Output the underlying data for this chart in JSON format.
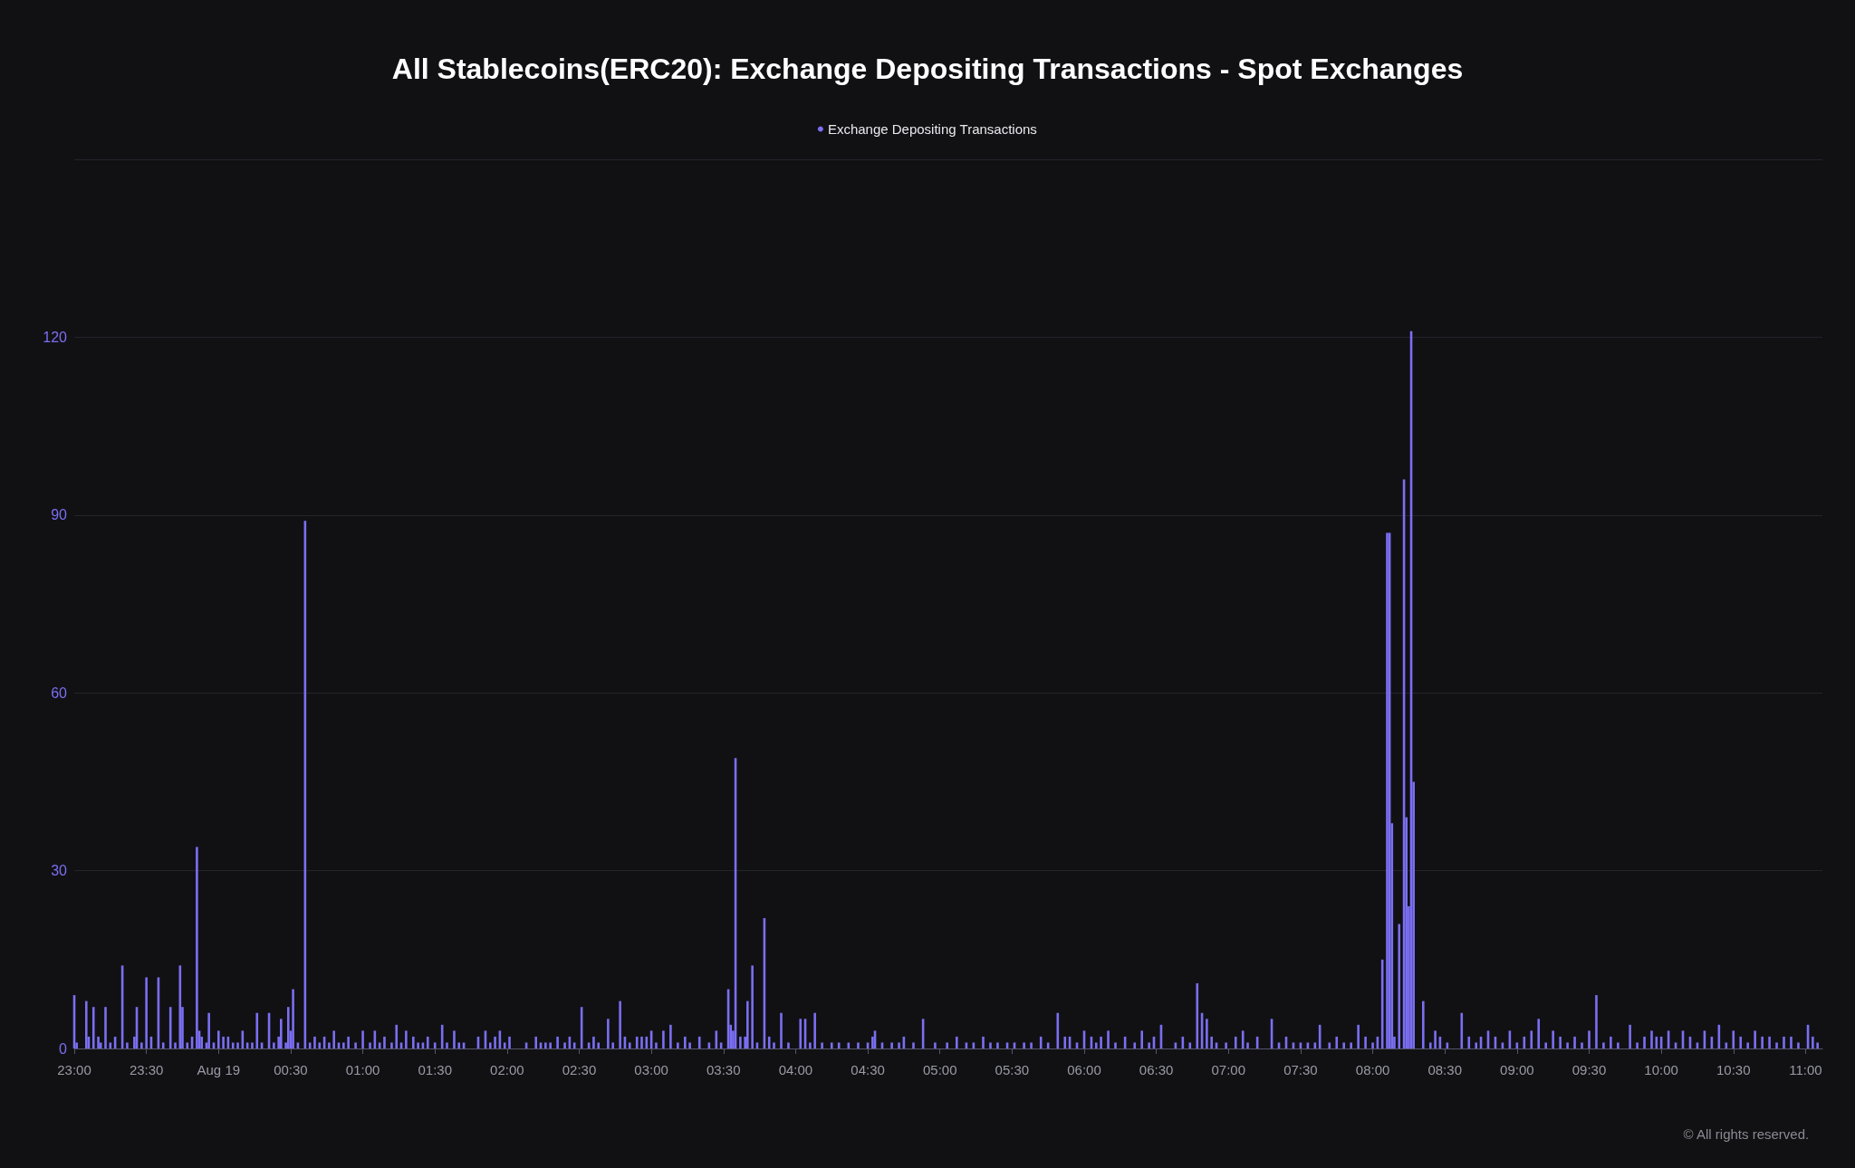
{
  "chart_data": {
    "type": "bar",
    "title": "All Stablecoins(ERC20): Exchange Depositing Transactions - Spot Exchanges",
    "xlim": [
      "--08-18T23:00",
      "--08-19T11:07"
    ],
    "xticks": [
      {
        "value": "--08-18T23:00",
        "label": "23:00"
      },
      {
        "value": "--08-18T23:30",
        "label": "23:30"
      },
      {
        "value": "--08-19T00:00",
        "label": "Aug 19"
      },
      {
        "value": "--08-19T00:30",
        "label": "00:30"
      },
      {
        "value": "--08-19T01:00",
        "label": "01:00"
      },
      {
        "value": "--08-19T01:30",
        "label": "01:30"
      },
      {
        "value": "--08-19T02:00",
        "label": "02:00"
      },
      {
        "value": "--08-19T02:30",
        "label": "02:30"
      },
      {
        "value": "--08-19T03:00",
        "label": "03:00"
      },
      {
        "value": "--08-19T03:30",
        "label": "03:30"
      },
      {
        "value": "--08-19T04:00",
        "label": "04:00"
      },
      {
        "value": "--08-19T04:30",
        "label": "04:30"
      },
      {
        "value": "--08-19T05:00",
        "label": "05:00"
      },
      {
        "value": "--08-19T05:30",
        "label": "05:30"
      },
      {
        "value": "--08-19T06:00",
        "label": "06:00"
      },
      {
        "value": "--08-19T06:30",
        "label": "06:30"
      },
      {
        "value": "--08-19T07:00",
        "label": "07:00"
      },
      {
        "value": "--08-19T07:30",
        "label": "07:30"
      },
      {
        "value": "--08-19T08:00",
        "label": "08:00"
      },
      {
        "value": "--08-19T08:30",
        "label": "08:30"
      },
      {
        "value": "--08-19T09:00",
        "label": "09:00"
      },
      {
        "value": "--08-19T09:30",
        "label": "09:30"
      },
      {
        "value": "--08-19T10:00",
        "label": "10:00"
      },
      {
        "value": "--08-19T10:30",
        "label": "10:30"
      },
      {
        "value": "--08-19T11:00",
        "label": "11:00"
      }
    ],
    "ylim": [
      0,
      150
    ],
    "yticks": [
      0,
      30,
      60,
      90,
      120,
      {
        "value": 150,
        "label": null
      }
    ],
    "grid": "y",
    "legend": "top",
    "series": [
      {
        "name": "Exchange Depositing Transactions",
        "color": "#7b6ff2",
        "x": [
          "--08-18T23:00",
          "--08-18T23:01",
          "--08-18T23:05",
          "--08-18T23:06",
          "--08-18T23:08",
          "--08-18T23:10",
          "--08-18T23:11",
          "--08-18T23:13",
          "--08-18T23:15",
          "--08-18T23:17",
          "--08-18T23:20",
          "--08-18T23:22",
          "--08-18T23:25",
          "--08-18T23:26",
          "--08-18T23:28",
          "--08-18T23:30",
          "--08-18T23:32",
          "--08-18T23:35",
          "--08-18T23:37",
          "--08-18T23:40",
          "--08-18T23:42",
          "--08-18T23:44",
          "--08-18T23:45",
          "--08-18T23:47",
          "--08-18T23:49",
          "--08-18T23:51",
          "--08-18T23:52",
          "--08-18T23:53",
          "--08-18T23:55",
          "--08-18T23:56",
          "--08-18T23:58",
          "--08-19T00:00",
          "--08-19T00:02",
          "--08-19T00:04",
          "--08-19T00:06",
          "--08-19T00:08",
          "--08-19T00:10",
          "--08-19T00:12",
          "--08-19T00:14",
          "--08-19T00:16",
          "--08-19T00:18",
          "--08-19T00:21",
          "--08-19T00:23",
          "--08-19T00:25",
          "--08-19T00:26",
          "--08-19T00:28",
          "--08-19T00:29",
          "--08-19T00:30",
          "--08-19T00:31",
          "--08-19T00:33",
          "--08-19T00:36",
          "--08-19T00:38",
          "--08-19T00:40",
          "--08-19T00:42",
          "--08-19T00:44",
          "--08-19T00:46",
          "--08-19T00:48",
          "--08-19T00:50",
          "--08-19T00:52",
          "--08-19T00:54",
          "--08-19T00:57",
          "--08-19T01:00",
          "--08-19T01:03",
          "--08-19T01:05",
          "--08-19T01:07",
          "--08-19T01:09",
          "--08-19T01:12",
          "--08-19T01:14",
          "--08-19T01:16",
          "--08-19T01:18",
          "--08-19T01:21",
          "--08-19T01:23",
          "--08-19T01:25",
          "--08-19T01:27",
          "--08-19T01:30",
          "--08-19T01:33",
          "--08-19T01:35",
          "--08-19T01:38",
          "--08-19T01:40",
          "--08-19T01:42",
          "--08-19T01:48",
          "--08-19T01:51",
          "--08-19T01:53",
          "--08-19T01:55",
          "--08-19T01:57",
          "--08-19T01:59",
          "--08-19T02:01",
          "--08-19T02:08",
          "--08-19T02:12",
          "--08-19T02:14",
          "--08-19T02:16",
          "--08-19T02:18",
          "--08-19T02:21",
          "--08-19T02:24",
          "--08-19T02:26",
          "--08-19T02:28",
          "--08-19T02:31",
          "--08-19T02:34",
          "--08-19T02:36",
          "--08-19T02:38",
          "--08-19T02:42",
          "--08-19T02:44",
          "--08-19T02:47",
          "--08-19T02:49",
          "--08-19T02:51",
          "--08-19T02:54",
          "--08-19T02:56",
          "--08-19T02:58",
          "--08-19T03:00",
          "--08-19T03:02",
          "--08-19T03:05",
          "--08-19T03:08",
          "--08-19T03:11",
          "--08-19T03:14",
          "--08-19T03:16",
          "--08-19T03:20",
          "--08-19T03:24",
          "--08-19T03:27",
          "--08-19T03:29",
          "--08-19T03:32",
          "--08-19T03:33",
          "--08-19T03:34",
          "--08-19T03:35",
          "--08-19T03:37",
          "--08-19T03:39",
          "--08-19T03:40",
          "--08-19T03:42",
          "--08-19T03:44",
          "--08-19T03:47",
          "--08-19T03:49",
          "--08-19T03:51",
          "--08-19T03:54",
          "--08-19T03:57",
          "--08-19T04:02",
          "--08-19T04:04",
          "--08-19T04:06",
          "--08-19T04:08",
          "--08-19T04:11",
          "--08-19T04:15",
          "--08-19T04:18",
          "--08-19T04:22",
          "--08-19T04:26",
          "--08-19T04:30",
          "--08-19T04:32",
          "--08-19T04:33",
          "--08-19T04:36",
          "--08-19T04:40",
          "--08-19T04:43",
          "--08-19T04:45",
          "--08-19T04:49",
          "--08-19T04:53",
          "--08-19T04:58",
          "--08-19T05:03",
          "--08-19T05:07",
          "--08-19T05:11",
          "--08-19T05:14",
          "--08-19T05:18",
          "--08-19T05:21",
          "--08-19T05:24",
          "--08-19T05:28",
          "--08-19T05:31",
          "--08-19T05:35",
          "--08-19T05:38",
          "--08-19T05:42",
          "--08-19T05:45",
          "--08-19T05:49",
          "--08-19T05:52",
          "--08-19T05:54",
          "--08-19T05:57",
          "--08-19T06:00",
          "--08-19T06:03",
          "--08-19T06:05",
          "--08-19T06:07",
          "--08-19T06:10",
          "--08-19T06:13",
          "--08-19T06:17",
          "--08-19T06:21",
          "--08-19T06:24",
          "--08-19T06:27",
          "--08-19T06:29",
          "--08-19T06:32",
          "--08-19T06:38",
          "--08-19T06:41",
          "--08-19T06:44",
          "--08-19T06:47",
          "--08-19T06:49",
          "--08-19T06:51",
          "--08-19T06:53",
          "--08-19T06:55",
          "--08-19T06:59",
          "--08-19T07:03",
          "--08-19T07:06",
          "--08-19T07:08",
          "--08-19T07:12",
          "--08-19T07:18",
          "--08-19T07:21",
          "--08-19T07:24",
          "--08-19T07:27",
          "--08-19T07:30",
          "--08-19T07:33",
          "--08-19T07:36",
          "--08-19T07:38",
          "--08-19T07:42",
          "--08-19T07:45",
          "--08-19T07:48",
          "--08-19T07:51",
          "--08-19T07:54",
          "--08-19T07:57",
          "--08-19T08:00",
          "--08-19T08:02",
          "--08-19T08:04",
          "--08-19T08:06",
          "--08-19T08:07",
          "--08-19T08:08",
          "--08-19T08:09",
          "--08-19T08:11",
          "--08-19T08:13",
          "--08-19T08:14",
          "--08-19T08:15",
          "--08-19T08:16",
          "--08-19T08:17",
          "--08-19T08:21",
          "--08-19T08:24",
          "--08-19T08:26",
          "--08-19T08:28",
          "--08-19T08:31",
          "--08-19T08:37",
          "--08-19T08:40",
          "--08-19T08:43",
          "--08-19T08:45",
          "--08-19T08:48",
          "--08-19T08:51",
          "--08-19T08:54",
          "--08-19T08:57",
          "--08-19T09:00",
          "--08-19T09:03",
          "--08-19T09:06",
          "--08-19T09:09",
          "--08-19T09:12",
          "--08-19T09:15",
          "--08-19T09:18",
          "--08-19T09:21",
          "--08-19T09:24",
          "--08-19T09:27",
          "--08-19T09:30",
          "--08-19T09:33",
          "--08-19T09:36",
          "--08-19T09:39",
          "--08-19T09:42",
          "--08-19T09:47",
          "--08-19T09:50",
          "--08-19T09:53",
          "--08-19T09:56",
          "--08-19T09:58",
          "--08-19T10:00",
          "--08-19T10:03",
          "--08-19T10:06",
          "--08-19T10:09",
          "--08-19T10:12",
          "--08-19T10:15",
          "--08-19T10:18",
          "--08-19T10:21",
          "--08-19T10:24",
          "--08-19T10:27",
          "--08-19T10:30",
          "--08-19T10:33",
          "--08-19T10:36",
          "--08-19T10:39",
          "--08-19T10:42",
          "--08-19T10:45",
          "--08-19T10:48",
          "--08-19T10:51",
          "--08-19T10:54",
          "--08-19T10:57",
          "--08-19T11:01",
          "--08-19T11:03",
          "--08-19T11:05"
        ],
        "values": [
          9,
          1,
          8,
          2,
          7,
          2,
          1,
          7,
          1,
          2,
          14,
          1,
          2,
          7,
          1,
          12,
          2,
          12,
          1,
          7,
          1,
          14,
          7,
          1,
          2,
          34,
          3,
          2,
          1,
          6,
          1,
          3,
          2,
          2,
          1,
          1,
          3,
          1,
          1,
          6,
          1,
          6,
          1,
          2,
          5,
          1,
          7,
          3,
          10,
          1,
          89,
          1,
          2,
          1,
          2,
          1,
          3,
          1,
          1,
          2,
          1,
          3,
          1,
          3,
          1,
          2,
          1,
          4,
          1,
          3,
          2,
          1,
          1,
          2,
          1,
          4,
          1,
          3,
          1,
          1,
          2,
          3,
          1,
          2,
          3,
          1,
          2,
          1,
          2,
          1,
          1,
          1,
          2,
          1,
          2,
          1,
          7,
          1,
          2,
          1,
          5,
          1,
          8,
          2,
          1,
          2,
          2,
          2,
          3,
          1,
          3,
          4,
          1,
          2,
          1,
          2,
          1,
          3,
          1,
          10,
          4,
          3,
          49,
          2,
          2,
          8,
          14,
          1,
          22,
          2,
          1,
          6,
          1,
          5,
          5,
          1,
          6,
          1,
          1,
          1,
          1,
          1,
          1,
          2,
          3,
          1,
          1,
          1,
          2,
          1,
          5,
          1,
          1,
          2,
          1,
          1,
          2,
          1,
          1,
          1,
          1,
          1,
          1,
          2,
          1,
          6,
          2,
          2,
          1,
          3,
          2,
          1,
          2,
          3,
          1,
          2,
          1,
          3,
          1,
          2,
          4,
          1,
          2,
          1,
          11,
          6,
          5,
          2,
          1,
          1,
          2,
          3,
          1,
          2,
          5,
          1,
          2,
          1,
          1,
          1,
          1,
          4,
          1,
          2,
          1,
          1,
          4,
          2,
          1,
          2,
          15,
          87,
          87,
          38,
          2,
          21,
          96,
          39,
          24,
          121,
          45,
          8,
          1,
          3,
          2,
          1,
          6,
          2,
          1,
          2,
          3,
          2,
          1,
          3,
          1,
          2,
          3,
          5,
          1,
          3,
          2,
          1,
          2,
          1,
          3,
          9,
          1,
          2,
          1,
          4,
          1,
          2,
          3,
          2,
          2,
          3,
          1,
          3,
          2,
          1,
          3,
          2,
          4,
          1,
          3,
          2,
          1,
          3,
          2,
          2,
          1,
          2,
          2,
          1,
          4,
          2,
          1
        ]
      }
    ],
    "annotations": [
      "© All rights reserved."
    ]
  }
}
